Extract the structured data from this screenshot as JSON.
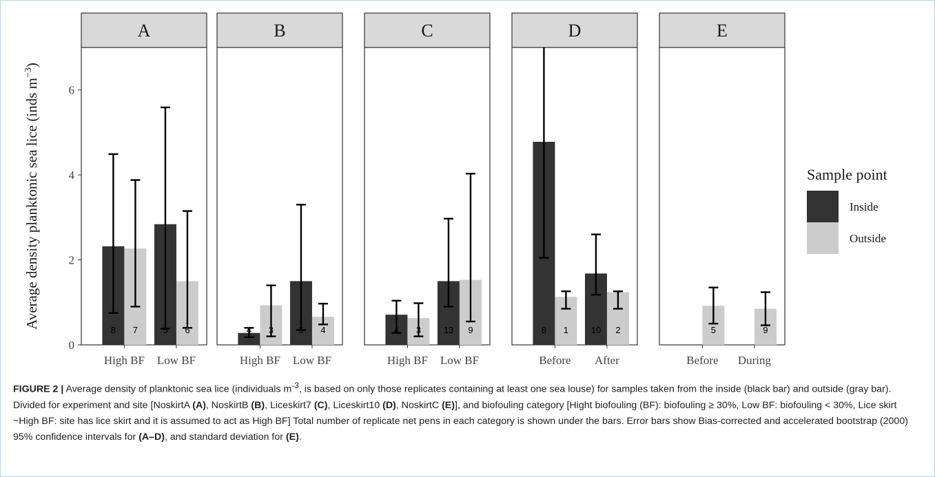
{
  "chart_data": {
    "type": "bar",
    "ylabel": "Average density planktonic sea lice (inds m",
    "ylabel_sup": "−3",
    "ylabel_close": ")",
    "ylim": [
      0,
      7
    ],
    "yticks": [
      0,
      2,
      4,
      6
    ],
    "legend": {
      "title": "Sample point",
      "placement": "right",
      "entries": [
        {
          "label": "Inside",
          "color": "#333333"
        },
        {
          "label": "Outside",
          "color": "#cccccc"
        }
      ]
    },
    "panels": [
      {
        "title": "A",
        "categories": [
          "High BF",
          "Low BF"
        ],
        "series": [
          {
            "name": "Inside",
            "values": [
              2.32,
              2.84
            ],
            "ci_low": [
              0.75,
              0.38
            ],
            "ci_high": [
              4.49,
              5.59
            ],
            "n": [
              "8",
              "5"
            ]
          },
          {
            "name": "Outside",
            "values": [
              2.27,
              1.5
            ],
            "ci_low": [
              0.9,
              0.4
            ],
            "ci_high": [
              3.88,
              3.15
            ],
            "n": [
              "7",
              "6"
            ]
          }
        ]
      },
      {
        "title": "B",
        "categories": [
          "High BF",
          "Low BF"
        ],
        "series": [
          {
            "name": "Inside",
            "values": [
              0.28,
              1.5
            ],
            "ci_low": [
              0.18,
              0.35
            ],
            "ci_high": [
              0.4,
              3.3
            ],
            "n": [
              "4",
              "5"
            ]
          },
          {
            "name": "Outside",
            "values": [
              0.93,
              0.66
            ],
            "ci_low": [
              0.2,
              0.48
            ],
            "ci_high": [
              1.4,
              0.97
            ],
            "n": [
              "3",
              "4"
            ]
          }
        ]
      },
      {
        "title": "C",
        "categories": [
          "High BF",
          "Low BF"
        ],
        "series": [
          {
            "name": "Inside",
            "values": [
              0.71,
              1.5
            ],
            "ci_low": [
              0.28,
              0.9
            ],
            "ci_high": [
              1.04,
              2.97
            ],
            "n": [
              "4",
              "13"
            ]
          },
          {
            "name": "Outside",
            "values": [
              0.63,
              1.53
            ],
            "ci_low": [
              0.2,
              0.55
            ],
            "ci_high": [
              0.98,
              4.03
            ],
            "n": [
              "3",
              "9"
            ]
          }
        ]
      },
      {
        "title": "D",
        "categories": [
          "Before",
          "After"
        ],
        "series": [
          {
            "name": "Inside",
            "values": [
              4.78,
              1.68
            ],
            "ci_low": [
              2.05,
              1.18
            ],
            "ci_high": [
              7.0,
              2.6
            ],
            "n": [
              "8",
              "10"
            ]
          },
          {
            "name": "Outside",
            "values": [
              1.13,
              1.24
            ],
            "ci_low": [
              0.85,
              0.85
            ],
            "ci_high": [
              1.26,
              1.26
            ],
            "n": [
              "1",
              "2"
            ]
          }
        ]
      },
      {
        "title": "E",
        "categories": [
          "Before",
          "During"
        ],
        "series": [
          {
            "name": "Inside",
            "values": [
              null,
              null
            ],
            "ci_low": [
              null,
              null
            ],
            "ci_high": [
              null,
              null
            ],
            "n": [
              "",
              ""
            ]
          },
          {
            "name": "Outside",
            "values": [
              0.92,
              0.85
            ],
            "ci_low": [
              0.5,
              0.46
            ],
            "ci_high": [
              1.35,
              1.24
            ],
            "n": [
              "5",
              "9"
            ]
          }
        ]
      }
    ]
  },
  "caption": {
    "label": "FIGURE 2 |",
    "t1": " Average density of planktonic sea lice (individuals m",
    "sup": "-3",
    "t2": ", is based on only those replicates containing at least one sea louse) for samples taken from the inside (black bar) and outside (gray bar). Divided for experiment and site [NoskirtA ",
    "b1": "(A)",
    "t3": ", NoskirtB ",
    "b2": "(B)",
    "t4": ", Liceskirt7 ",
    "b3": "(C)",
    "t5": ", Liceskirt10 ",
    "b4": "(D)",
    "t6": ", NoskirtC ",
    "b5": "(E)",
    "t7": "], and biofouling category [Hight biofouling (BF): biofouling ≥ 30%, Low BF: biofouling < 30%, Lice skirt ~High BF: site has lice skirt and it is assumed to act as High BF] Total number of replicate net pens in each category is shown under the bars. Error bars show Bias-corrected and accelerated bootstrap (2000) 95% confidence intervals for ",
    "b6": "(A–D)",
    "t8": ", and standard deviation for ",
    "b7": "(E)",
    "t9": "."
  }
}
